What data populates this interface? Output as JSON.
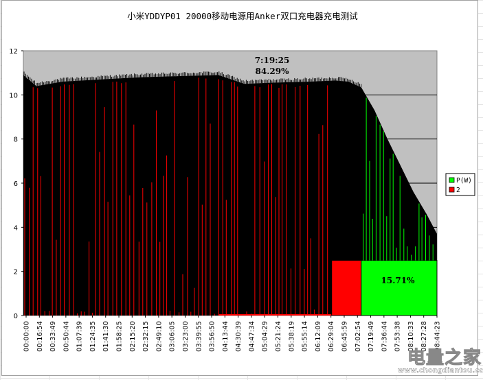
{
  "chart_data": {
    "type": "area",
    "title": "小米YDDYP01 20000移动电源用Anker双口充电器充电测试",
    "xlabel": "",
    "ylabel": "",
    "ylim": [
      0,
      12
    ],
    "yticks": [
      0,
      2,
      4,
      6,
      8,
      10,
      12
    ],
    "grid": true,
    "legend": "right",
    "x_tick_labels": [
      "00:00:00",
      "00:16:54",
      "00:33:49",
      "00:50:44",
      "01:07:39",
      "01:24:35",
      "01:41:30",
      "01:58:25",
      "02:15:20",
      "02:32:15",
      "02:49:10",
      "03:06:05",
      "03:23:00",
      "03:39:55",
      "03:56:50",
      "04:13:44",
      "04:30:39",
      "04:47:34",
      "05:04:29",
      "05:21:24",
      "05:38:19",
      "05:55:14",
      "06:12:09",
      "06:29:04",
      "06:45:59",
      "07:02:54",
      "07:19:49",
      "07:36:44",
      "07:53:38",
      "08:10:33",
      "08:27:28",
      "08:44:23"
    ],
    "series": [
      {
        "name": "P(W)",
        "color": "#00ff00",
        "x": [
          "00:00:00",
          "00:16:54",
          "00:50:44",
          "01:41:30",
          "02:32:15",
          "03:23:00",
          "04:13:44",
          "04:47:34",
          "05:21:24",
          "06:12:09",
          "06:45:59",
          "07:02:54",
          "07:19:25",
          "07:36:44",
          "07:53:38",
          "08:10:33",
          "08:27:28",
          "08:44:23",
          "08:58:00"
        ],
        "values": [
          10.9,
          10.4,
          10.6,
          10.7,
          10.8,
          10.85,
          10.9,
          10.5,
          10.55,
          10.6,
          10.65,
          10.6,
          10.35,
          9.3,
          8.0,
          6.8,
          5.6,
          4.6,
          3.7
        ]
      },
      {
        "name": "2",
        "color": "#ff0000",
        "x": [
          "06:41:00",
          "07:19:25"
        ],
        "values": [
          2.5,
          2.5
        ]
      }
    ],
    "annotations": [
      {
        "x": "07:19:25",
        "text": "7:19:25"
      },
      {
        "x": "07:19:25",
        "text": "84.29%"
      },
      {
        "x": "08:10:33",
        "text": "15.71%"
      }
    ],
    "colors": {
      "plot_background": "#c0c0c0",
      "primary_fill": "#000000",
      "secondary_spikes": "#ff0000",
      "tail_spikes": "#00ff00"
    }
  },
  "watermark": {
    "logo": "电量之家",
    "url": "www.chongdiantou.com"
  }
}
